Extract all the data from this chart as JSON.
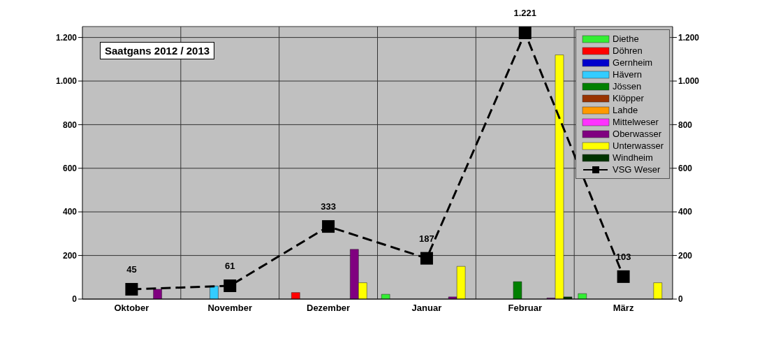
{
  "chart_data": {
    "type": "bar",
    "title": "Saatgans 2012 / 2013",
    "categories": [
      "Oktober",
      "November",
      "Dezember",
      "Januar",
      "Februar",
      "März"
    ],
    "series": [
      {
        "name": "Diethe",
        "color": "#33ee33",
        "values": [
          null,
          null,
          null,
          22,
          null,
          25
        ]
      },
      {
        "name": "Döhren",
        "color": "#ff0000",
        "values": [
          null,
          null,
          30,
          null,
          null,
          null
        ]
      },
      {
        "name": "Gernheim",
        "color": "#0000cc",
        "values": [
          null,
          null,
          null,
          null,
          null,
          null
        ]
      },
      {
        "name": "Hävern",
        "color": "#33ccff",
        "values": [
          null,
          60,
          null,
          null,
          null,
          null
        ]
      },
      {
        "name": "Jössen",
        "color": "#008000",
        "values": [
          null,
          null,
          null,
          null,
          80,
          null
        ]
      },
      {
        "name": "Klöpper",
        "color": "#993300",
        "values": [
          null,
          null,
          null,
          null,
          null,
          null
        ]
      },
      {
        "name": "Lahde",
        "color": "#ff9900",
        "values": [
          null,
          null,
          null,
          null,
          null,
          null
        ]
      },
      {
        "name": "Mittelweser",
        "color": "#ff33ff",
        "values": [
          null,
          null,
          null,
          null,
          null,
          null
        ]
      },
      {
        "name": "Oberwasser",
        "color": "#800080",
        "values": [
          45,
          null,
          228,
          10,
          5,
          null
        ]
      },
      {
        "name": "Unterwasser",
        "color": "#ffff00",
        "values": [
          null,
          null,
          75,
          150,
          1120,
          75
        ]
      },
      {
        "name": "Windheim",
        "color": "#003300",
        "values": [
          null,
          null,
          null,
          null,
          10,
          null
        ]
      },
      {
        "name": "VSG Weser",
        "type": "line",
        "color": "#000000",
        "marker": "square",
        "line_style": "dashed",
        "values": [
          45,
          61,
          333,
          187,
          1221,
          103
        ],
        "value_labels": [
          "45",
          "61",
          "333",
          "187",
          "1.221",
          "103"
        ]
      }
    ],
    "ylim": [
      0,
      1250
    ],
    "yticks": [
      0,
      200,
      400,
      600,
      800,
      {
        "value": 1000,
        "label": "1.000"
      },
      {
        "value": 1200,
        "label": "1.200"
      }
    ],
    "y2lim": [
      0,
      1250
    ],
    "y2ticks": [
      0,
      200,
      400,
      600,
      800,
      {
        "value": 1000,
        "label": "1.000"
      },
      {
        "value": 1200,
        "label": "1.200"
      }
    ],
    "grid": true,
    "legend": "top right"
  }
}
